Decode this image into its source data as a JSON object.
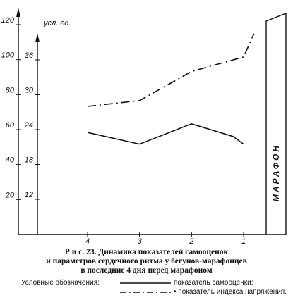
{
  "chart_data": {
    "type": "line",
    "x_categories": [
      "4",
      "3",
      "2",
      "1"
    ],
    "left_axis": {
      "label": "",
      "ticks": [
        20,
        40,
        60,
        80,
        100,
        120
      ],
      "ylim": [
        0,
        125
      ]
    },
    "right_axis": {
      "label": "усл. ед.",
      "ticks": [
        12,
        18,
        24,
        30,
        36
      ],
      "ylim": [
        6,
        45
      ]
    },
    "series": [
      {
        "name": "показатель самооценки;",
        "style": "solid",
        "x": [
          4,
          3,
          2,
          1.2,
          1
        ],
        "values": [
          23.5,
          21.5,
          25,
          22.8,
          21.5
        ]
      },
      {
        "name": "показатель индекса напряжения.",
        "style": "dash-dot",
        "x": [
          4,
          3,
          2,
          1,
          0.8
        ],
        "values": [
          28,
          29,
          34,
          36.5,
          40.5
        ]
      }
    ],
    "event_label": "МАРАФОН"
  },
  "caption": {
    "line1": "Р и с.  23.  Динамика показателей самооценок",
    "line2": "и параметров сердечного ритма у бегунов-марафонцев",
    "line3": "в последние 4 дня перед марафоном"
  },
  "legend": {
    "title": "Условные обозначения:",
    "item1": "показатель самооценки;",
    "item2": "• показатель индекса напряжения."
  }
}
